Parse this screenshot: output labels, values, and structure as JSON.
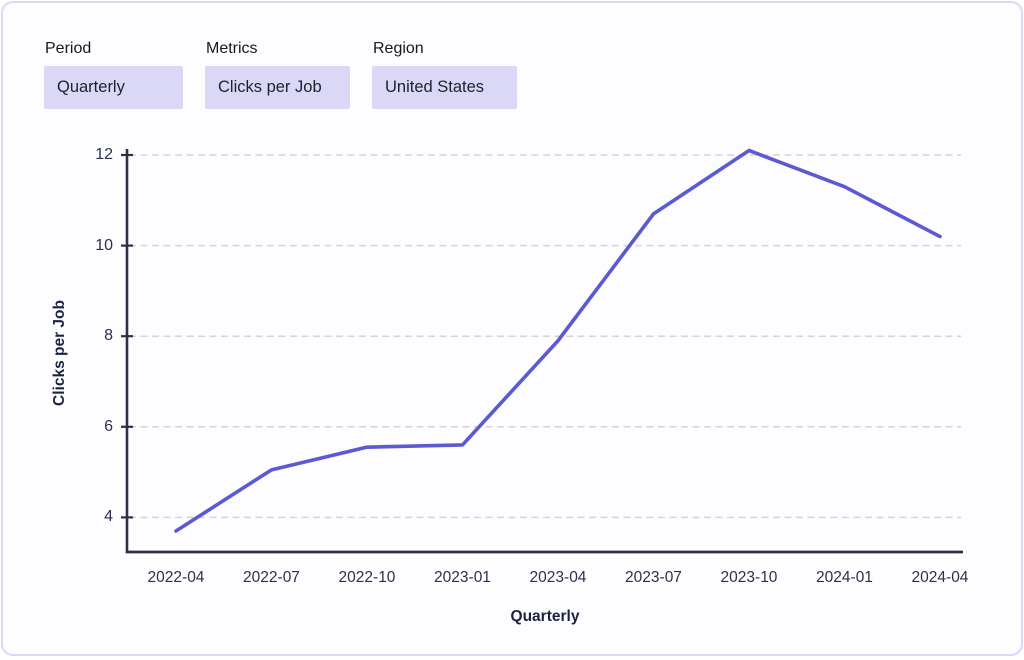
{
  "header": {
    "filters": [
      {
        "id": "period",
        "label": "Period",
        "value": "Quarterly"
      },
      {
        "id": "metrics",
        "label": "Metrics",
        "value": "Clicks per Job"
      },
      {
        "id": "region",
        "label": "Region",
        "value": "United States"
      }
    ]
  },
  "chart_data": {
    "type": "line",
    "categories": [
      "2022-04",
      "2022-07",
      "2022-10",
      "2023-01",
      "2023-04",
      "2023-07",
      "2023-10",
      "2024-01",
      "2024-04"
    ],
    "values": [
      3.7,
      5.05,
      5.55,
      5.6,
      7.9,
      10.7,
      12.1,
      11.3,
      10.2
    ],
    "series_name": "Clicks per Job",
    "xlabel": "Quarterly",
    "ylabel": "Clicks per Job",
    "yticks": [
      4,
      6,
      8,
      10,
      12
    ],
    "ylim": [
      3.2,
      12.4
    ],
    "grid": "horizontal-dashed",
    "legend": "none",
    "line_color": "#5c5ad2",
    "grid_color": "#d4d4d6",
    "axis_color": "#2d3147",
    "tick_label_color": "#2b3050"
  },
  "colors": {
    "card_background": "#fdfcfe",
    "card_border": "#dcd7f5",
    "chip_background": "#dbd7f7",
    "chip_text": "#1d212c",
    "filter_label_text": "#17191f"
  }
}
